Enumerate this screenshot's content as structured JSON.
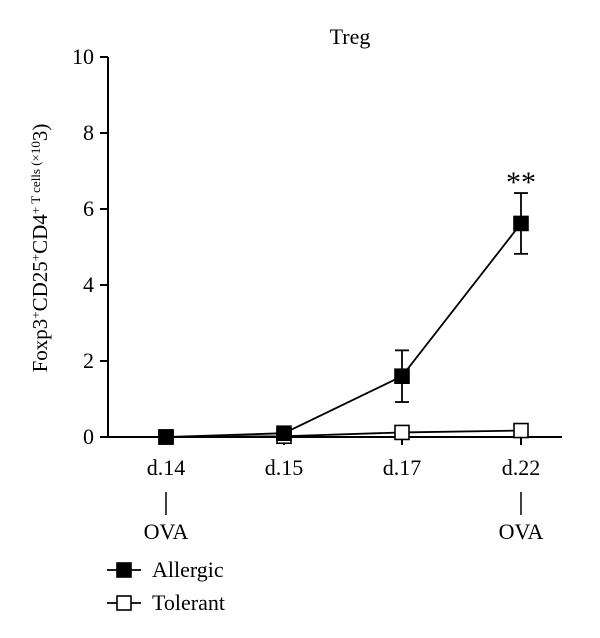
{
  "chart_data": {
    "type": "line",
    "title": "Treg",
    "ylabel_parts": [
      "Foxp3",
      "+",
      "CD25",
      "+",
      "CD4",
      "+",
      " T cells (×10",
      "3",
      ")"
    ],
    "xlabel": "",
    "categories": [
      "d.14",
      "d.15",
      "d.17",
      "d.22"
    ],
    "ylim": [
      0,
      10
    ],
    "yticks": [
      0,
      2,
      4,
      6,
      8,
      10
    ],
    "series": [
      {
        "name": "Allergic",
        "marker": "filled-square",
        "values": [
          0.0,
          0.1,
          1.6,
          5.62
        ],
        "error": [
          0.0,
          0.0,
          0.68,
          0.8
        ]
      },
      {
        "name": "Tolerant",
        "marker": "open-square",
        "values": [
          0.0,
          0.02,
          0.12,
          0.17
        ],
        "error": [
          0.0,
          0.0,
          0.0,
          0.0
        ]
      }
    ],
    "annotations": [
      {
        "text": "**",
        "category": "d.22"
      }
    ],
    "ova_markers": [
      {
        "category": "d.14",
        "text": "OVA"
      },
      {
        "category": "d.22",
        "text": "OVA"
      }
    ],
    "legend": {
      "placement": "bottom-left",
      "entries": [
        "Allergic",
        "Tolerant"
      ]
    },
    "grid": false
  }
}
